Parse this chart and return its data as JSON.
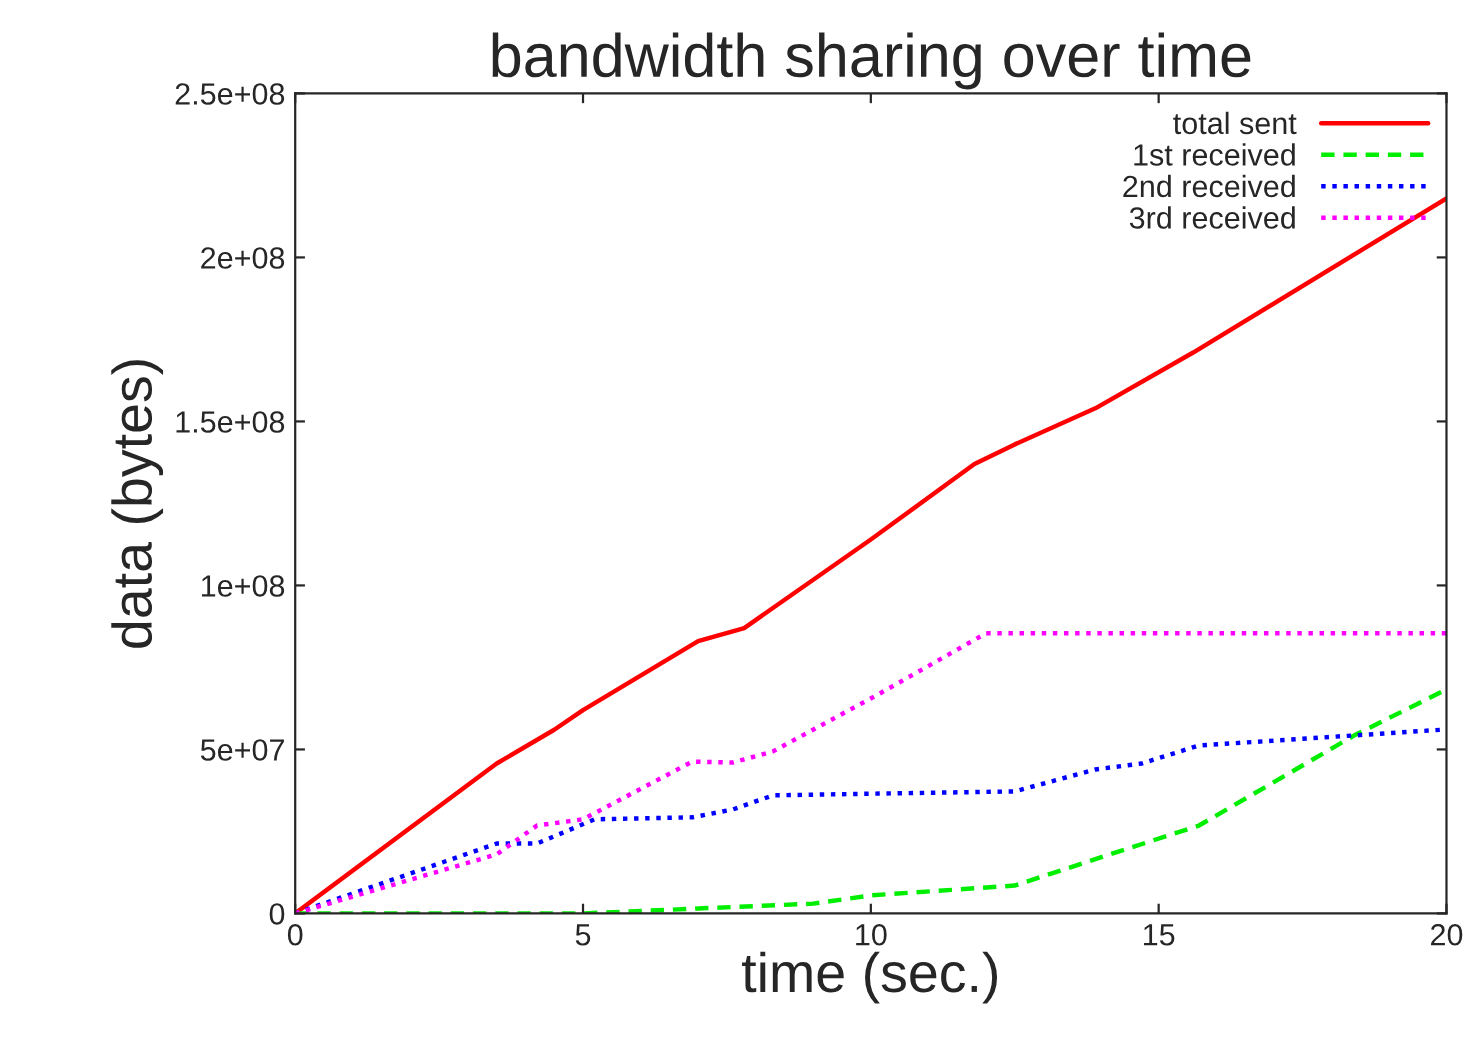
{
  "chart_data": {
    "type": "line",
    "title": "bandwidth sharing over time",
    "xlabel": "time (sec.)",
    "ylabel": "data (bytes)",
    "xlim": [
      0,
      20
    ],
    "xticks": [
      0,
      5,
      10,
      15,
      20
    ],
    "ylim": [
      0,
      250000000
    ],
    "yticks": [
      {
        "value": 0,
        "label": "0"
      },
      {
        "value": 50000000,
        "label": "5e+07"
      },
      {
        "value": 100000000,
        "label": "1e+08"
      },
      {
        "value": 150000000,
        "label": "1.5e+08"
      },
      {
        "value": 200000000,
        "label": "2e+08"
      },
      {
        "value": 250000000,
        "label": "2.5e+08"
      }
    ],
    "legend": "top right",
    "grid": false,
    "series": [
      {
        "name": "total sent",
        "color": "#ff0000",
        "line_style": "solid",
        "x": [
          0,
          3.5,
          4.5,
          5,
          7,
          7.8,
          10,
          11.8,
          12.5,
          13.9,
          15.6,
          20
        ],
        "values": [
          0,
          45700000,
          56000000,
          62000000,
          83000000,
          87000000,
          114000000,
          137000000,
          143000000,
          154000000,
          171000000,
          218000000
        ]
      },
      {
        "name": "1st received",
        "color": "#00ee00",
        "line_style": "dashed",
        "x": [
          0,
          5,
          7,
          9,
          10,
          12.5,
          14.1,
          15.7,
          16.9,
          18.4,
          20
        ],
        "values": [
          0,
          0,
          1500000,
          3000000,
          5500000,
          8500000,
          17700000,
          26800000,
          39000000,
          54300000,
          68300000
        ]
      },
      {
        "name": "2nd received",
        "color": "#0000ff",
        "line_style": "dotted",
        "x": [
          0,
          3.5,
          4.2,
          5.2,
          6.9,
          7.6,
          8.3,
          10,
          12.5,
          13.9,
          14.7,
          15.7,
          20
        ],
        "values": [
          0,
          21300000,
          21300000,
          28700000,
          29300000,
          31700000,
          36000000,
          36500000,
          37200000,
          43900000,
          45700000,
          51200000,
          56100000
        ]
      },
      {
        "name": "3rd received",
        "color": "#ff00ff",
        "line_style": "dotted",
        "x": [
          0,
          3.5,
          4.2,
          5,
          6.9,
          7.6,
          8.3,
          10.1,
          12,
          20
        ],
        "values": [
          0,
          18000000,
          26800000,
          28700000,
          46300000,
          46000000,
          49400000,
          66500000,
          85400000,
          85400000
        ]
      }
    ]
  }
}
